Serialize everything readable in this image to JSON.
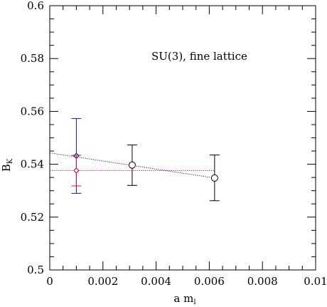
{
  "chart_data": {
    "type": "scatter",
    "title": "",
    "annotation": "SU(3), fine lattice",
    "xlabel": {
      "main": "a m",
      "sub": "l"
    },
    "ylabel": {
      "main": "B",
      "sub": "K"
    },
    "xlim": [
      0,
      0.01
    ],
    "ylim": [
      0.5,
      0.6
    ],
    "xticks": [
      0,
      0.002,
      0.004,
      0.006,
      0.008,
      0.01
    ],
    "xtick_labels": [
      "0",
      "0.002",
      "0.004",
      "0.006",
      "0.008",
      "0.01"
    ],
    "yticks": [
      0.5,
      0.52,
      0.54,
      0.56,
      0.58,
      0.6
    ],
    "ytick_labels": [
      "0.5",
      "0.52",
      "0.54",
      "0.56",
      "0.58",
      "0.6"
    ],
    "grid": false,
    "series": [
      {
        "marker": "open-circle",
        "color": "#000000",
        "points": [
          {
            "x": 0.0031,
            "y": 0.5397,
            "yerr_low": 0.532,
            "yerr_high": 0.5473
          },
          {
            "x": 0.0062,
            "y": 0.5348,
            "yerr_low": 0.5262,
            "yerr_high": 0.5435
          }
        ]
      },
      {
        "marker": "diamond",
        "color": "#1a1a80",
        "fit": "linear",
        "fit_line": {
          "x": [
            0,
            0.0062
          ],
          "y": [
            0.5443,
            0.5348
          ]
        },
        "points": [
          {
            "x": 0.001,
            "y": 0.5432,
            "yerr_low": 0.529,
            "yerr_high": 0.5573
          }
        ]
      },
      {
        "marker": "diamond",
        "color": "#d01040",
        "fit": "constant",
        "fit_line": {
          "x": [
            0,
            0.0062
          ],
          "y": [
            0.5376,
            0.5376
          ]
        },
        "points": [
          {
            "x": 0.001,
            "y": 0.5376,
            "yerr_low": 0.5318,
            "yerr_high": 0.5434
          }
        ]
      }
    ]
  }
}
